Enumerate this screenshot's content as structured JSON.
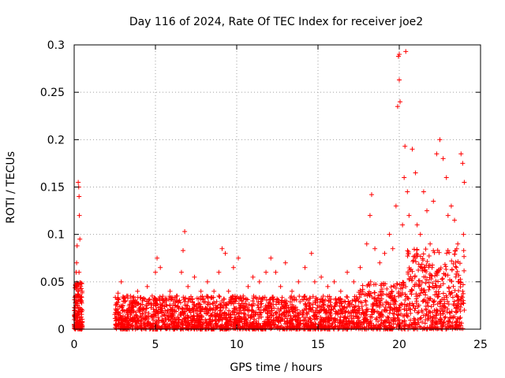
{
  "chart_data": {
    "type": "scatter",
    "title": "Day 116 of 2024, Rate Of TEC Index for receiver joe2",
    "xlabel": "GPS time / hours",
    "ylabel": "ROTI / TECUs",
    "xlim": [
      0,
      25
    ],
    "ylim": [
      0,
      0.3
    ],
    "x_ticks": [
      0,
      5,
      10,
      15,
      20,
      25
    ],
    "x_tick_labels": [
      "0",
      "5",
      "10",
      "15",
      "20",
      "25"
    ],
    "y_ticks": [
      0,
      0.05,
      0.1,
      0.15,
      0.2,
      0.25,
      0.3
    ],
    "y_tick_labels": [
      "0",
      "0.05",
      "0.1",
      "0.15",
      "0.2",
      "0.25",
      "0.3"
    ],
    "grid": true,
    "marker": "+",
    "color": "#ff0000",
    "series": [
      {
        "name": "ROTI",
        "points": [
          [
            0.0,
            0.005
          ],
          [
            0.05,
            0.02
          ],
          [
            0.1,
            0.035
          ],
          [
            0.12,
            0.06
          ],
          [
            0.15,
            0.07
          ],
          [
            0.18,
            0.088
          ],
          [
            0.1,
            0.015
          ],
          [
            0.2,
            0.025
          ],
          [
            0.25,
            0.155
          ],
          [
            0.28,
            0.15
          ],
          [
            0.3,
            0.14
          ],
          [
            0.32,
            0.12
          ],
          [
            0.35,
            0.095
          ],
          [
            0.3,
            0.06
          ],
          [
            0.4,
            0.045
          ],
          [
            0.45,
            0.03
          ],
          [
            0.5,
            0.02
          ],
          [
            0.5,
            0.008
          ],
          [
            2.6,
            0.02
          ],
          [
            2.7,
            0.038
          ],
          [
            2.9,
            0.05
          ],
          [
            3.0,
            0.025
          ],
          [
            3.3,
            0.035
          ],
          [
            3.6,
            0.02
          ],
          [
            3.9,
            0.04
          ],
          [
            4.2,
            0.03
          ],
          [
            4.5,
            0.045
          ],
          [
            4.8,
            0.035
          ],
          [
            5.0,
            0.06
          ],
          [
            5.1,
            0.075
          ],
          [
            5.3,
            0.065
          ],
          [
            5.5,
            0.03
          ],
          [
            5.9,
            0.04
          ],
          [
            6.3,
            0.035
          ],
          [
            6.6,
            0.06
          ],
          [
            6.8,
            0.103
          ],
          [
            6.7,
            0.083
          ],
          [
            7.0,
            0.045
          ],
          [
            7.4,
            0.055
          ],
          [
            7.8,
            0.04
          ],
          [
            8.2,
            0.05
          ],
          [
            8.6,
            0.04
          ],
          [
            8.9,
            0.06
          ],
          [
            9.1,
            0.085
          ],
          [
            9.3,
            0.08
          ],
          [
            9.5,
            0.04
          ],
          [
            9.8,
            0.065
          ],
          [
            10.1,
            0.075
          ],
          [
            10.4,
            0.035
          ],
          [
            10.7,
            0.045
          ],
          [
            11.0,
            0.055
          ],
          [
            11.4,
            0.05
          ],
          [
            11.8,
            0.06
          ],
          [
            12.1,
            0.075
          ],
          [
            12.4,
            0.06
          ],
          [
            12.7,
            0.045
          ],
          [
            13.0,
            0.07
          ],
          [
            13.4,
            0.04
          ],
          [
            13.8,
            0.05
          ],
          [
            14.2,
            0.065
          ],
          [
            14.6,
            0.08
          ],
          [
            14.8,
            0.05
          ],
          [
            15.2,
            0.055
          ],
          [
            15.6,
            0.045
          ],
          [
            16.0,
            0.05
          ],
          [
            16.4,
            0.04
          ],
          [
            16.8,
            0.06
          ],
          [
            17.2,
            0.05
          ],
          [
            17.6,
            0.065
          ],
          [
            18.0,
            0.09
          ],
          [
            18.2,
            0.12
          ],
          [
            18.3,
            0.142
          ],
          [
            18.5,
            0.085
          ],
          [
            18.8,
            0.07
          ],
          [
            19.1,
            0.08
          ],
          [
            19.4,
            0.1
          ],
          [
            19.6,
            0.085
          ],
          [
            19.8,
            0.13
          ],
          [
            19.9,
            0.235
          ],
          [
            19.95,
            0.288
          ],
          [
            20.0,
            0.29
          ],
          [
            20.0,
            0.263
          ],
          [
            20.05,
            0.24
          ],
          [
            20.2,
            0.11
          ],
          [
            20.3,
            0.16
          ],
          [
            20.35,
            0.193
          ],
          [
            20.4,
            0.293
          ],
          [
            20.5,
            0.145
          ],
          [
            20.6,
            0.12
          ],
          [
            20.8,
            0.19
          ],
          [
            21.0,
            0.165
          ],
          [
            21.1,
            0.11
          ],
          [
            21.3,
            0.1
          ],
          [
            21.5,
            0.145
          ],
          [
            21.7,
            0.125
          ],
          [
            21.9,
            0.09
          ],
          [
            22.1,
            0.135
          ],
          [
            22.3,
            0.185
          ],
          [
            22.5,
            0.2
          ],
          [
            22.7,
            0.18
          ],
          [
            22.9,
            0.16
          ],
          [
            23.0,
            0.12
          ],
          [
            23.2,
            0.13
          ],
          [
            23.4,
            0.115
          ],
          [
            23.6,
            0.09
          ],
          [
            23.8,
            0.185
          ],
          [
            23.9,
            0.175
          ],
          [
            24.0,
            0.155
          ],
          [
            23.95,
            0.1
          ],
          [
            23.9,
            0.04
          ],
          [
            24.0,
            0.02
          ]
        ]
      }
    ],
    "bulk_noise_note": "Dense band of ROTI values between 0 and ~0.04 TECUs from 2.5 h to 24 h, rising to ~0.08 after 18 h"
  }
}
